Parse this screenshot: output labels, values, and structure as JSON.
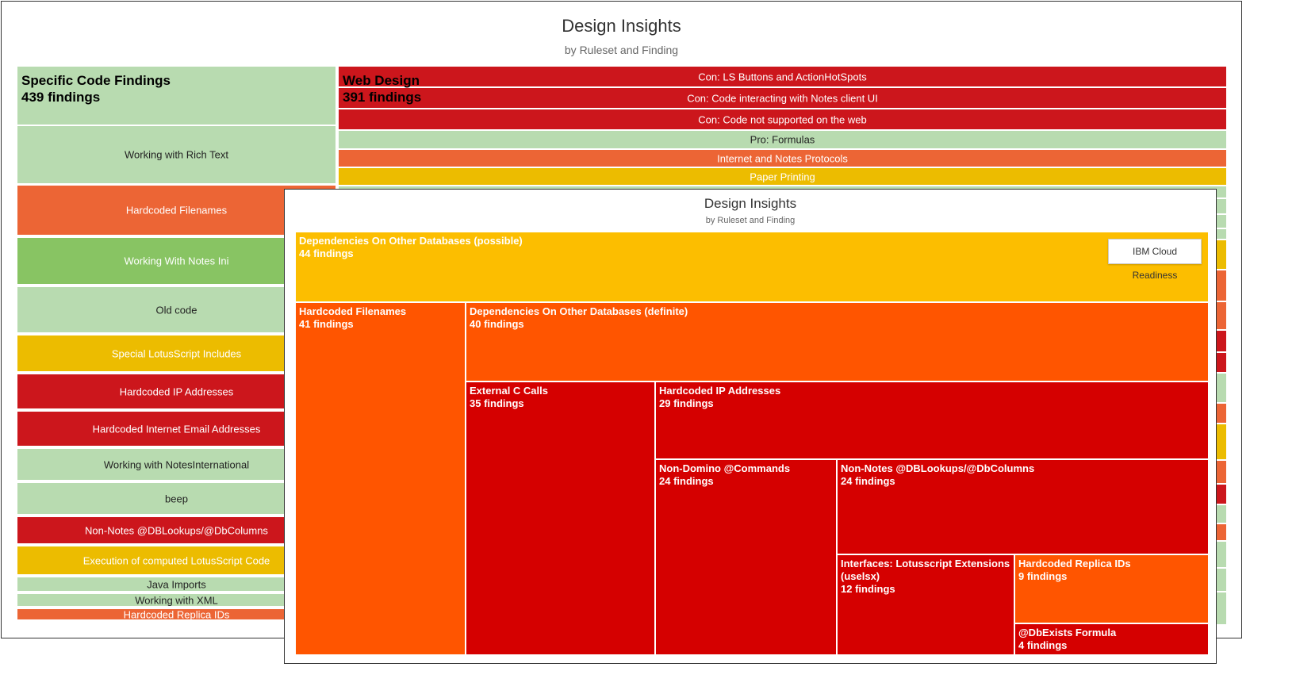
{
  "back": {
    "title": "Design Insights",
    "subtitle": "by Ruleset and Finding",
    "groups": [
      {
        "name": "Specific Code Findings",
        "count_label": "439 findings"
      },
      {
        "name": "Web Design",
        "count_label": "391 findings"
      }
    ]
  },
  "front": {
    "title": "Design Insights",
    "subtitle": "by Ruleset and Finding",
    "legend_button": "IBM Cloud Readiness"
  },
  "colors": {
    "light_green": "#b8dbb0",
    "green": "#88c463",
    "orange_red": "#ec6535",
    "red": "#cc161c",
    "gold": "#ecbc00",
    "front_gold": "#fcbe00",
    "front_orange": "#ff5500",
    "front_red": "#d50000"
  },
  "chart_data": [
    {
      "type": "treemap",
      "title": "Design Insights",
      "subtitle": "by Ruleset and Finding",
      "groups": [
        {
          "name": "Specific Code Findings",
          "count": 439,
          "visible_items": [
            {
              "name": "Working with Rich Text"
            },
            {
              "name": "Hardcoded Filenames"
            },
            {
              "name": "Working With Notes Ini"
            },
            {
              "name": "Old code"
            },
            {
              "name": "Special LotusScript Includes"
            },
            {
              "name": "Hardcoded IP Addresses"
            },
            {
              "name": "Hardcoded Internet Email Addresses"
            },
            {
              "name": "Working with NotesInternational"
            },
            {
              "name": "beep"
            },
            {
              "name": "Non-Notes @DBLookups/@DbColumns"
            },
            {
              "name": "Execution of computed LotusScript Code"
            },
            {
              "name": "Java Imports"
            },
            {
              "name": "Working with XML"
            },
            {
              "name": "Hardcoded Replica IDs"
            }
          ]
        },
        {
          "name": "Web Design",
          "count": 391,
          "visible_items": [
            {
              "name": "Con: LS Buttons and ActionHotSpots"
            },
            {
              "name": "Con: Code interacting with Notes client UI"
            },
            {
              "name": "Con: Code not supported on the web"
            },
            {
              "name": "Pro: Formulas"
            },
            {
              "name": "Internet and Notes Protocols"
            },
            {
              "name": "Paper Printing"
            }
          ]
        }
      ]
    },
    {
      "type": "treemap",
      "title": "Design Insights",
      "subtitle": "by Ruleset and Finding",
      "legend": [
        "IBM Cloud Readiness"
      ],
      "items": [
        {
          "name": "Dependencies On Other Databases (possible)",
          "count_label": "44 findings",
          "value": 44
        },
        {
          "name": "Hardcoded Filenames",
          "count_label": "41 findings",
          "value": 41
        },
        {
          "name": "Dependencies On Other Databases (definite)",
          "count_label": "40 findings",
          "value": 40
        },
        {
          "name": "External C Calls",
          "count_label": "35 findings",
          "value": 35
        },
        {
          "name": "Hardcoded IP Addresses",
          "count_label": "29 findings",
          "value": 29
        },
        {
          "name": "Non-Domino @Commands",
          "count_label": "24 findings",
          "value": 24
        },
        {
          "name": "Non-Notes @DBLookups/@DbColumns",
          "count_label": "24 findings",
          "value": 24
        },
        {
          "name": "Interfaces: Lotusscript Extensions (uselsx)",
          "count_label": "12 findings",
          "value": 12
        },
        {
          "name": "Hardcoded Replica IDs",
          "count_label": "9 findings",
          "value": 9
        },
        {
          "name": "@DbExists Formula",
          "count_label": "4 findings",
          "value": 4
        }
      ]
    }
  ]
}
